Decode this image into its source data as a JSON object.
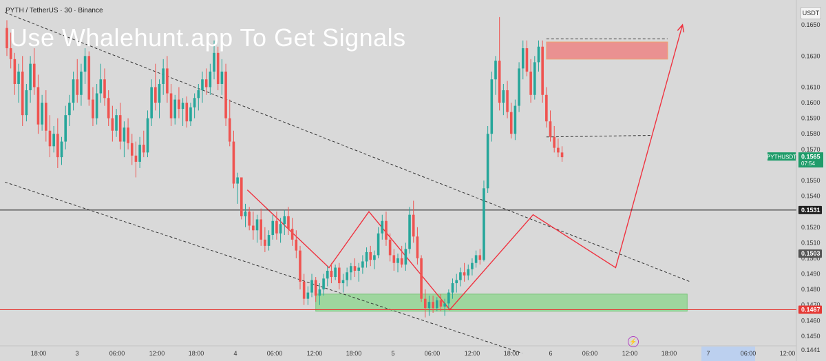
{
  "header": {
    "symbol_line": "PYTH / TetherUS · 30 · Binance"
  },
  "watermark": "Use Whalehunt.app To Get Signals",
  "currency_button": "USDT",
  "colors": {
    "background": "#d9d9d9",
    "up": "#26a69a",
    "down": "#ef5350",
    "trendline": "#ef3340",
    "resistance_zone": "#ef7878",
    "support_zone": "#8fd48f",
    "accent_label": "#1f9c6a"
  },
  "chart_data": {
    "type": "candlestick",
    "title": "",
    "ylim": [
      0.1434,
      0.1666
    ],
    "y_ticks": [
      "0.1650",
      "0.1630",
      "0.1610",
      "0.1600",
      "0.1590",
      "0.1580",
      "0.1570",
      "0.1550",
      "0.1540",
      "0.1520",
      "0.1510",
      "0.1500",
      "0.1490",
      "0.1480",
      "0.1470",
      "0.1460",
      "0.1450",
      "0.1441"
    ],
    "x_ticks": [
      "18:00",
      "3",
      "06:00",
      "12:00",
      "18:00",
      "4",
      "06:00",
      "12:00",
      "18:00",
      "5",
      "06:00",
      "12:00",
      "18:00",
      "6",
      "06:00",
      "12:00",
      "18:00",
      "7",
      "06:00",
      "12:00"
    ],
    "x_tick_highlighted": [
      "7",
      "06:00"
    ],
    "price_labels": [
      {
        "name": "PYTHUSDT",
        "value": "0.1565",
        "sub": "07:54",
        "color": "#1f9c6a"
      },
      {
        "name": "",
        "value": "0.1531",
        "color": "#222222"
      },
      {
        "name": "",
        "value": "0.1503",
        "color": "#555555"
      },
      {
        "name": "",
        "value": "0.1467",
        "color": "#e53935"
      }
    ],
    "horizontal_lines": [
      {
        "y": 0.1531,
        "color": "#222222",
        "style": "solid"
      },
      {
        "y": 0.1467,
        "color": "#e53935",
        "style": "solid"
      }
    ],
    "zones": [
      {
        "label": "resistance",
        "x0": 138,
        "x1": 169,
        "y0": 0.1628,
        "y1": 0.1639
      },
      {
        "label": "support",
        "x0": 79,
        "x1": 174,
        "y0": 0.1466,
        "y1": 0.1477
      }
    ],
    "candles": [
      [
        0.1648,
        0.1653,
        0.163,
        0.1635
      ],
      [
        0.1635,
        0.1645,
        0.1622,
        0.1628
      ],
      [
        0.1628,
        0.1632,
        0.1605,
        0.1612
      ],
      [
        0.1612,
        0.1625,
        0.16,
        0.162
      ],
      [
        0.162,
        0.163,
        0.1585,
        0.1592
      ],
      [
        0.1592,
        0.1612,
        0.1588,
        0.1608
      ],
      [
        0.1608,
        0.163,
        0.16,
        0.1625
      ],
      [
        0.1625,
        0.1635,
        0.1605,
        0.161
      ],
      [
        0.161,
        0.1618,
        0.158,
        0.1586
      ],
      [
        0.1586,
        0.1605,
        0.1582,
        0.16
      ],
      [
        0.16,
        0.1608,
        0.1575,
        0.1582
      ],
      [
        0.1582,
        0.1592,
        0.1565,
        0.1572
      ],
      [
        0.1572,
        0.1585,
        0.1568,
        0.158
      ],
      [
        0.158,
        0.159,
        0.1558,
        0.1565
      ],
      [
        0.1565,
        0.1578,
        0.156,
        0.1575
      ],
      [
        0.1575,
        0.1598,
        0.157,
        0.1592
      ],
      [
        0.1592,
        0.1605,
        0.1585,
        0.16
      ],
      [
        0.16,
        0.162,
        0.1595,
        0.1615
      ],
      [
        0.1615,
        0.1628,
        0.16,
        0.1605
      ],
      [
        0.1605,
        0.1625,
        0.1598,
        0.162
      ],
      [
        0.162,
        0.1635,
        0.1612,
        0.163
      ],
      [
        0.163,
        0.1633,
        0.1598,
        0.1602
      ],
      [
        0.1602,
        0.161,
        0.1585,
        0.159
      ],
      [
        0.159,
        0.1612,
        0.1586,
        0.1606
      ],
      [
        0.1606,
        0.1625,
        0.16,
        0.1615
      ],
      [
        0.1615,
        0.1622,
        0.1598,
        0.1603
      ],
      [
        0.1603,
        0.1608,
        0.1585,
        0.159
      ],
      [
        0.159,
        0.1598,
        0.1575,
        0.1582
      ],
      [
        0.1582,
        0.1596,
        0.1578,
        0.1592
      ],
      [
        0.1592,
        0.16,
        0.157,
        0.1575
      ],
      [
        0.1575,
        0.1588,
        0.1565,
        0.1584
      ],
      [
        0.1584,
        0.159,
        0.157,
        0.1574
      ],
      [
        0.1574,
        0.158,
        0.156,
        0.1566
      ],
      [
        0.1566,
        0.1575,
        0.1552,
        0.1562
      ],
      [
        0.1562,
        0.1578,
        0.1558,
        0.1573
      ],
      [
        0.1573,
        0.1582,
        0.1565,
        0.1568
      ],
      [
        0.1568,
        0.1595,
        0.1565,
        0.159
      ],
      [
        0.159,
        0.1615,
        0.1585,
        0.161
      ],
      [
        0.161,
        0.1625,
        0.1595,
        0.16
      ],
      [
        0.16,
        0.1615,
        0.159,
        0.1612
      ],
      [
        0.1612,
        0.1628,
        0.1605,
        0.1622
      ],
      [
        0.1622,
        0.163,
        0.16,
        0.1606
      ],
      [
        0.1606,
        0.1612,
        0.1585,
        0.159
      ],
      [
        0.159,
        0.1605,
        0.1586,
        0.1602
      ],
      [
        0.1602,
        0.161,
        0.159,
        0.1596
      ],
      [
        0.1596,
        0.1603,
        0.1585,
        0.16
      ],
      [
        0.16,
        0.1604,
        0.1584,
        0.1588
      ],
      [
        0.1588,
        0.16,
        0.1585,
        0.1597
      ],
      [
        0.1597,
        0.1606,
        0.159,
        0.1603
      ],
      [
        0.1603,
        0.1612,
        0.1595,
        0.1608
      ],
      [
        0.1608,
        0.162,
        0.16,
        0.1615
      ],
      [
        0.1615,
        0.1622,
        0.1605,
        0.161
      ],
      [
        0.161,
        0.1625,
        0.1605,
        0.162
      ],
      [
        0.162,
        0.164,
        0.1615,
        0.1632
      ],
      [
        0.1632,
        0.1636,
        0.1608,
        0.1612
      ],
      [
        0.1612,
        0.1628,
        0.1605,
        0.162
      ],
      [
        0.162,
        0.1625,
        0.1585,
        0.159
      ],
      [
        0.159,
        0.1602,
        0.1572,
        0.1575
      ],
      [
        0.1575,
        0.1582,
        0.1545,
        0.1548
      ],
      [
        0.1548,
        0.1555,
        0.1535,
        0.1552
      ],
      [
        0.1552,
        0.1552,
        0.1525,
        0.1527
      ],
      [
        0.1527,
        0.1535,
        0.152,
        0.153
      ],
      [
        0.153,
        0.1533,
        0.1518,
        0.1521
      ],
      [
        0.1521,
        0.153,
        0.1512,
        0.1518
      ],
      [
        0.1518,
        0.1528,
        0.151,
        0.1525
      ],
      [
        0.1525,
        0.1532,
        0.1508,
        0.1512
      ],
      [
        0.1512,
        0.152,
        0.1504,
        0.1508
      ],
      [
        0.1508,
        0.1518,
        0.1505,
        0.1515
      ],
      [
        0.1515,
        0.1528,
        0.1512,
        0.1524
      ],
      [
        0.1524,
        0.153,
        0.1512,
        0.1516
      ],
      [
        0.1516,
        0.1526,
        0.151,
        0.1522
      ],
      [
        0.1522,
        0.1531,
        0.1515,
        0.1527
      ],
      [
        0.1527,
        0.1533,
        0.1515,
        0.1519
      ],
      [
        0.1519,
        0.1526,
        0.1508,
        0.1512
      ],
      [
        0.1512,
        0.1518,
        0.15,
        0.1505
      ],
      [
        0.1505,
        0.1508,
        0.148,
        0.1485
      ],
      [
        0.1485,
        0.149,
        0.147,
        0.1474
      ],
      [
        0.1474,
        0.1482,
        0.147,
        0.1478
      ],
      [
        0.1478,
        0.149,
        0.1475,
        0.1486
      ],
      [
        0.1486,
        0.1488,
        0.1472,
        0.1476
      ],
      [
        0.1476,
        0.1484,
        0.147,
        0.148
      ],
      [
        0.148,
        0.149,
        0.1476,
        0.1487
      ],
      [
        0.1487,
        0.1495,
        0.1482,
        0.1492
      ],
      [
        0.1492,
        0.1497,
        0.1484,
        0.1488
      ],
      [
        0.1488,
        0.1496,
        0.1486,
        0.1494
      ],
      [
        0.1494,
        0.1497,
        0.148,
        0.1484
      ],
      [
        0.1484,
        0.149,
        0.1478,
        0.1486
      ],
      [
        0.1486,
        0.1494,
        0.1482,
        0.1491
      ],
      [
        0.1491,
        0.1497,
        0.1486,
        0.1495
      ],
      [
        0.1495,
        0.15,
        0.1488,
        0.1492
      ],
      [
        0.1492,
        0.1497,
        0.1485,
        0.1494
      ],
      [
        0.1494,
        0.1502,
        0.149,
        0.1498
      ],
      [
        0.1498,
        0.1507,
        0.1494,
        0.1504
      ],
      [
        0.1504,
        0.1508,
        0.1495,
        0.1499
      ],
      [
        0.1499,
        0.1505,
        0.1493,
        0.1502
      ],
      [
        0.1502,
        0.152,
        0.15,
        0.1516
      ],
      [
        0.1516,
        0.1528,
        0.1512,
        0.1524
      ],
      [
        0.1524,
        0.153,
        0.1508,
        0.1512
      ],
      [
        0.1512,
        0.1516,
        0.1498,
        0.1502
      ],
      [
        0.1502,
        0.1506,
        0.1492,
        0.1497
      ],
      [
        0.1497,
        0.1503,
        0.1491,
        0.15
      ],
      [
        0.15,
        0.1508,
        0.1494,
        0.1496
      ],
      [
        0.1496,
        0.151,
        0.1492,
        0.1506
      ],
      [
        0.1506,
        0.1533,
        0.1503,
        0.1528
      ],
      [
        0.1528,
        0.1537,
        0.151,
        0.1514
      ],
      [
        0.1514,
        0.152,
        0.1496,
        0.15
      ],
      [
        0.15,
        0.1502,
        0.1472,
        0.1474
      ],
      [
        0.1474,
        0.148,
        0.1462,
        0.1468
      ],
      [
        0.1468,
        0.1476,
        0.1463,
        0.1472
      ],
      [
        0.1472,
        0.1476,
        0.1465,
        0.1468
      ],
      [
        0.1468,
        0.1475,
        0.1466,
        0.1473
      ],
      [
        0.1473,
        0.1477,
        0.1466,
        0.1469
      ],
      [
        0.1469,
        0.1474,
        0.1463,
        0.1471
      ],
      [
        0.1471,
        0.148,
        0.1468,
        0.1478
      ],
      [
        0.1478,
        0.1487,
        0.1474,
        0.1484
      ],
      [
        0.1484,
        0.149,
        0.1478,
        0.1486
      ],
      [
        0.1486,
        0.1494,
        0.1482,
        0.1491
      ],
      [
        0.1491,
        0.1497,
        0.1485,
        0.1489
      ],
      [
        0.1489,
        0.1496,
        0.1486,
        0.1493
      ],
      [
        0.1493,
        0.15,
        0.1489,
        0.1497
      ],
      [
        0.1497,
        0.1505,
        0.1494,
        0.1502
      ],
      [
        0.1502,
        0.1506,
        0.1496,
        0.1499
      ],
      [
        0.1499,
        0.155,
        0.1498,
        0.1545
      ],
      [
        0.1545,
        0.1585,
        0.1542,
        0.158
      ],
      [
        0.158,
        0.162,
        0.1575,
        0.1615
      ],
      [
        0.1615,
        0.163,
        0.1605,
        0.1627
      ],
      [
        0.1627,
        0.1655,
        0.1595,
        0.16
      ],
      [
        0.16,
        0.1612,
        0.1592,
        0.1608
      ],
      [
        0.1608,
        0.1614,
        0.159,
        0.1594
      ],
      [
        0.1594,
        0.16,
        0.1577,
        0.158
      ],
      [
        0.158,
        0.1602,
        0.1576,
        0.1598
      ],
      [
        0.1598,
        0.1626,
        0.1594,
        0.1622
      ],
      [
        0.1622,
        0.164,
        0.1615,
        0.1635
      ],
      [
        0.1635,
        0.164,
        0.1617,
        0.162
      ],
      [
        0.162,
        0.1628,
        0.16,
        0.1605
      ],
      [
        0.1605,
        0.163,
        0.1602,
        0.1626
      ],
      [
        0.1626,
        0.164,
        0.162,
        0.1636
      ],
      [
        0.1636,
        0.164,
        0.16,
        0.1605
      ],
      [
        0.1605,
        0.161,
        0.1584,
        0.1588
      ],
      [
        0.1588,
        0.1595,
        0.1575,
        0.1578
      ],
      [
        0.1578,
        0.1585,
        0.1568,
        0.1571
      ],
      [
        0.1571,
        0.1577,
        0.1565,
        0.1568
      ],
      [
        0.1568,
        0.1572,
        0.1562,
        0.1565
      ]
    ],
    "trend_lines": [
      {
        "points": [
          [
            -0.5,
            0.1658
          ],
          [
            174.7,
            0.1485
          ]
        ],
        "style": "dashed"
      },
      {
        "points": [
          [
            -0.5,
            0.1549
          ],
          [
            131.8,
            0.1439
          ]
        ],
        "style": "dashed"
      },
      {
        "points": [
          [
            138,
            0.1578
          ],
          [
            165,
            0.1579
          ]
        ],
        "style": "dashed"
      },
      {
        "points": [
          [
            138,
            0.1641
          ],
          [
            169,
            0.1641
          ]
        ],
        "style": "dashed"
      },
      {
        "points": [
          [
            61.5,
            0.1544
          ],
          [
            82.4,
            0.1494
          ],
          [
            92.6,
            0.153
          ],
          [
            113.3,
            0.1467
          ],
          [
            134.6,
            0.1528
          ],
          [
            155.7,
            0.1494
          ],
          [
            172.8,
            0.165
          ]
        ],
        "style": "solid"
      }
    ]
  }
}
